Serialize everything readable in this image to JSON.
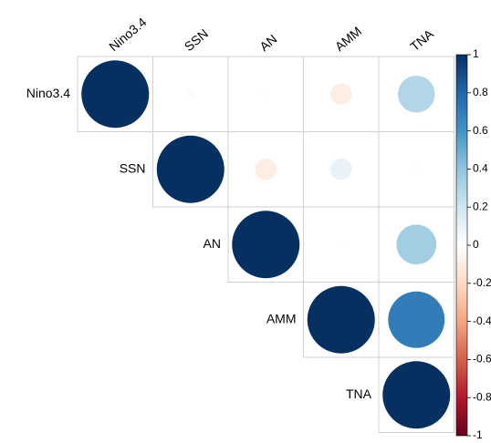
{
  "chart_data": {
    "type": "corrplot",
    "variables": [
      "Nino3.4",
      "SSN",
      "AN",
      "AMM",
      "TNA"
    ],
    "values": [
      [
        1,
        0.02,
        0.01,
        -0.1,
        0.3
      ],
      [
        null,
        1,
        -0.1,
        0.1,
        0.01
      ],
      [
        null,
        null,
        1,
        0.01,
        0.35
      ],
      [
        null,
        null,
        null,
        1,
        0.7
      ],
      [
        null,
        null,
        null,
        null,
        1
      ]
    ],
    "clim": [
      -1,
      1
    ],
    "cticks": [
      1,
      0.8,
      0.6,
      0.4,
      0.2,
      0,
      -0.2,
      -0.4,
      -0.6,
      -0.8,
      -1
    ],
    "colors": [
      "#67001F",
      "#B2182B",
      "#D6604D",
      "#F4A582",
      "#FDDBC7",
      "#FFFFFF",
      "#D1E5F0",
      "#92C5DE",
      "#4393C3",
      "#2166AC",
      "#053061"
    ]
  }
}
